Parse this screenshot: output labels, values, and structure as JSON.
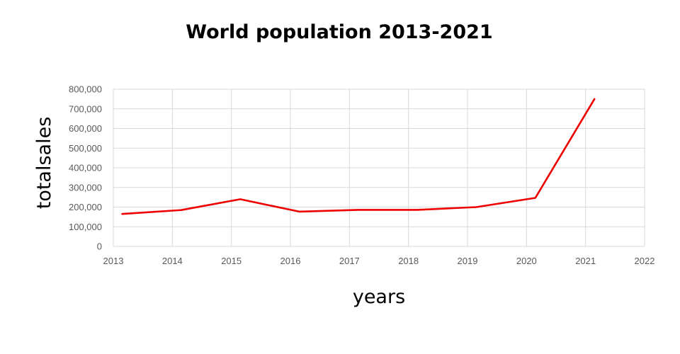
{
  "chart_data": {
    "type": "line",
    "title": "World population 2013-2021",
    "xlabel": "years",
    "ylabel": "totalsales",
    "xlim": [
      2013,
      2022
    ],
    "ylim": [
      0,
      800000
    ],
    "x_ticks": [
      "2013",
      "2014",
      "2015",
      "2016",
      "2017",
      "2018",
      "2019",
      "2020",
      "2021",
      "2022"
    ],
    "y_ticks": [
      "0",
      "100,000",
      "200,000",
      "300,000",
      "400,000",
      "500,000",
      "600,000",
      "700,000",
      "800,000"
    ],
    "grid": true,
    "legend": "none",
    "series": [
      {
        "color": "#ee0000",
        "x": [
          2013.15,
          2014.15,
          2015.15,
          2016.15,
          2017.15,
          2018.15,
          2019.15,
          2020.15,
          2021.15
        ],
        "y": [
          165000,
          185000,
          240000,
          177000,
          186000,
          186000,
          200000,
          247000,
          750000
        ]
      }
    ]
  }
}
